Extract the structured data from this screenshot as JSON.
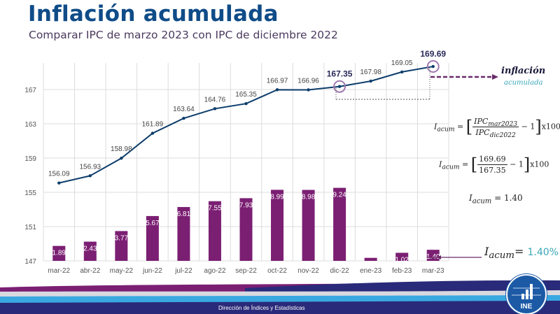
{
  "header": {
    "title": "Inflación acumulada",
    "subtitle": "Comparar IPC de marzo 2023 con IPC de diciembre 2022"
  },
  "chart_data": {
    "type": "bar+line",
    "categories": [
      "mar-22",
      "abr-22",
      "may-22",
      "jun-22",
      "jul-22",
      "ago-22",
      "sep-22",
      "oct-22",
      "nov-22",
      "dic-22",
      "ene-23",
      "feb-23",
      "mar-23"
    ],
    "series": [
      {
        "type": "line",
        "values": [
          156.09,
          156.93,
          158.98,
          161.89,
          163.64,
          164.76,
          165.35,
          166.97,
          166.96,
          167.35,
          167.98,
          169.05,
          169.69
        ],
        "color": "#0d3d6b"
      },
      {
        "type": "bar",
        "values": [
          1.89,
          2.43,
          3.77,
          5.67,
          6.81,
          7.55,
          7.93,
          8.99,
          8.98,
          9.24,
          0.38,
          1.02,
          1.4
        ],
        "labels": [
          "1.89",
          "2.43",
          "3.77",
          "5.67",
          "6.81",
          "7.55",
          "7.93",
          "8.99",
          "8.98",
          "9.24",
          "",
          "1.02",
          "1.40"
        ],
        "color": "#7b1f73"
      }
    ],
    "yticks": [
      "147",
      "151",
      "155",
      "159",
      "163",
      "167"
    ],
    "ylim": [
      147,
      171
    ],
    "grid": true,
    "highlighted": [
      "167.35",
      "169.69"
    ]
  },
  "annotations": {
    "inflacion_word": "inflación",
    "acumulada_word": "acumulada",
    "formula1": {
      "lhs": "I",
      "lhs_sub": "acum",
      "num": "IPC",
      "num_sub": "mar2023",
      "den": "IPC",
      "den_sub": "dic2022",
      "tail": "− 1",
      "mult": "x100"
    },
    "formula2": {
      "lhs": "I",
      "lhs_sub": "acum",
      "num": "169.69",
      "den": "167.35",
      "tail": "− 1",
      "mult": "x100"
    },
    "formula3": {
      "lhs": "I",
      "lhs_sub": "acum",
      "rhs": "= 1.40"
    },
    "result": {
      "lhs": "I",
      "lhs_sub": "acum",
      "eq": "=",
      "value": "1.40%"
    }
  },
  "footer": {
    "text": "Dirección de Índices y Estadísticas",
    "logo": "INE"
  },
  "colors": {
    "title": "#0f4c88",
    "bar": "#7b1f73",
    "line": "#0d3d6b",
    "accent": "#3aa8b8",
    "footer_navy": "#2a2a7a",
    "footer_blue": "#3aa8e0"
  }
}
